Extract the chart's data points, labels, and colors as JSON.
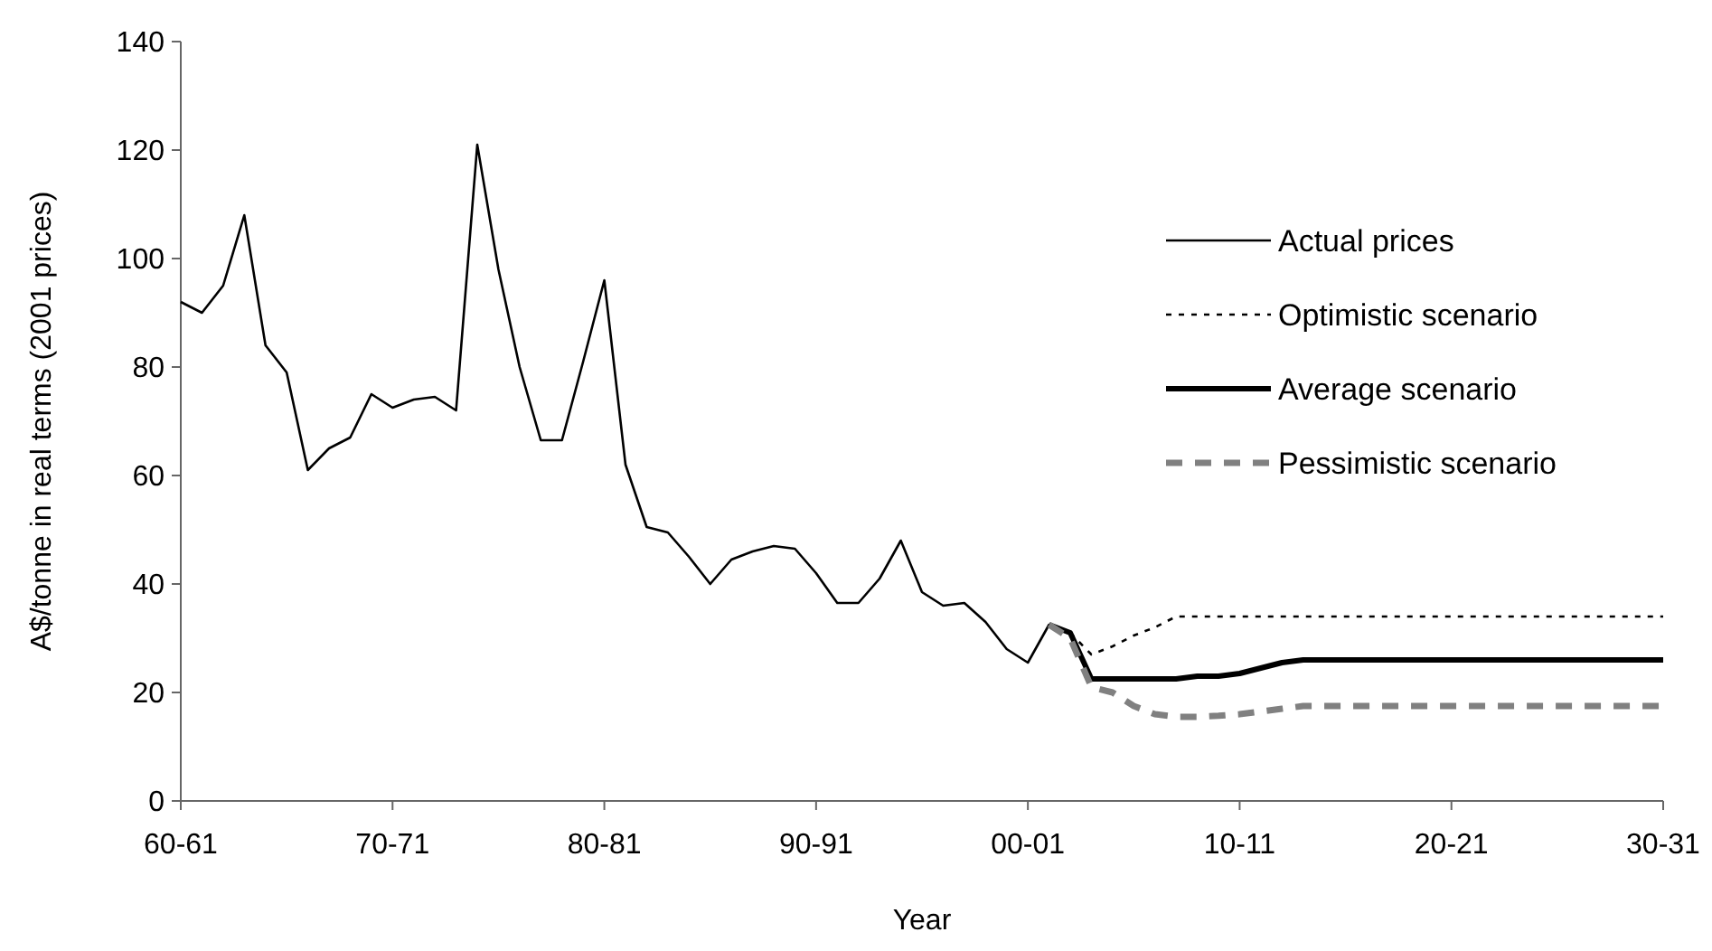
{
  "chart_data": {
    "type": "line",
    "xlabel": "Year",
    "ylabel": "A$/tonne in real terms (2001 prices)",
    "categories": [
      "60-61",
      null,
      null,
      null,
      null,
      null,
      null,
      null,
      null,
      null,
      "70-71",
      null,
      null,
      null,
      null,
      null,
      null,
      null,
      null,
      null,
      "80-81",
      null,
      null,
      null,
      null,
      null,
      null,
      null,
      null,
      null,
      "90-91",
      null,
      null,
      null,
      null,
      null,
      null,
      null,
      null,
      null,
      "00-01",
      null,
      null,
      null,
      null,
      null,
      null,
      null,
      null,
      null,
      "10-11",
      null,
      null,
      null,
      null,
      null,
      null,
      null,
      null,
      null,
      "20-21",
      null,
      null,
      null,
      null,
      null,
      null,
      null,
      null,
      null,
      "30-31"
    ],
    "ylim": [
      0,
      140
    ],
    "yticks": [
      0,
      20,
      40,
      60,
      80,
      100,
      120,
      140
    ],
    "legend": "top right",
    "series": [
      {
        "name": "Actual prices",
        "color": "#000000",
        "line_style": "solid",
        "values": [
          92,
          90,
          95,
          108,
          84,
          79,
          61,
          65,
          67,
          75,
          72.5,
          74,
          74.5,
          72,
          121,
          98,
          80,
          66.5,
          66.5,
          81,
          96,
          62,
          50.5,
          49.5,
          45,
          40,
          44.5,
          46,
          47,
          46.5,
          42,
          36.5,
          36.5,
          41,
          48,
          38.5,
          36,
          36.5,
          33,
          28,
          25.5,
          32.5,
          31,
          null,
          null,
          null,
          null,
          null,
          null,
          null,
          null,
          null,
          null,
          null,
          null,
          null,
          null,
          null,
          null,
          null,
          null,
          null,
          null,
          null,
          null,
          null,
          null,
          null,
          null,
          null,
          null
        ]
      },
      {
        "name": "Optimistic scenario",
        "color": "#000000",
        "line_style": "dotted",
        "values": [
          null,
          null,
          null,
          null,
          null,
          null,
          null,
          null,
          null,
          null,
          null,
          null,
          null,
          null,
          null,
          null,
          null,
          null,
          null,
          null,
          null,
          null,
          null,
          null,
          null,
          null,
          null,
          null,
          null,
          null,
          null,
          null,
          null,
          null,
          null,
          null,
          null,
          null,
          null,
          null,
          null,
          null,
          31,
          27,
          28.5,
          30.5,
          32,
          34,
          34,
          34,
          34,
          34,
          34,
          34,
          34,
          34,
          34,
          34,
          34,
          34,
          34,
          34,
          34,
          34,
          34,
          34,
          34,
          34,
          34,
          34,
          34
        ]
      },
      {
        "name": "Average scenario",
        "color": "#000000",
        "line_style": "solid",
        "values": [
          null,
          null,
          null,
          null,
          null,
          null,
          null,
          null,
          null,
          null,
          null,
          null,
          null,
          null,
          null,
          null,
          null,
          null,
          null,
          null,
          null,
          null,
          null,
          null,
          null,
          null,
          null,
          null,
          null,
          null,
          null,
          null,
          null,
          null,
          null,
          null,
          null,
          null,
          null,
          null,
          null,
          32.5,
          31,
          22.5,
          22.5,
          22.5,
          22.5,
          22.5,
          23,
          23,
          23.5,
          24.5,
          25.5,
          26,
          26,
          26,
          26,
          26,
          26,
          26,
          26,
          26,
          26,
          26,
          26,
          26,
          26,
          26,
          26,
          26,
          26
        ]
      },
      {
        "name": "Pessimistic scenario",
        "color": "#808080",
        "line_style": "dashed",
        "values": [
          null,
          null,
          null,
          null,
          null,
          null,
          null,
          null,
          null,
          null,
          null,
          null,
          null,
          null,
          null,
          null,
          null,
          null,
          null,
          null,
          null,
          null,
          null,
          null,
          null,
          null,
          null,
          null,
          null,
          null,
          null,
          null,
          null,
          null,
          null,
          null,
          null,
          null,
          null,
          null,
          null,
          32.5,
          30,
          21,
          20,
          17.5,
          16,
          15.5,
          15.5,
          15.7,
          16,
          16.5,
          17,
          17.5,
          17.5,
          17.5,
          17.5,
          17.5,
          17.5,
          17.5,
          17.5,
          17.5,
          17.5,
          17.5,
          17.5,
          17.5,
          17.5,
          17.5,
          17.5,
          17.5,
          17.5
        ]
      }
    ]
  }
}
